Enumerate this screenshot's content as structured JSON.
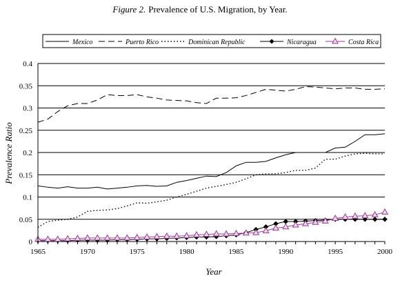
{
  "caption": {
    "figure_label": "Figure 2.",
    "figure_title": "Prevalence of U.S. Migration, by Year."
  },
  "chart_data": {
    "type": "line",
    "title": "Figure 2. Prevalence of U.S. Migration, by Year.",
    "xlabel": "Year",
    "ylabel": "Prevalence Ratio",
    "xlim": [
      1965,
      2000
    ],
    "ylim": [
      0,
      0.4
    ],
    "x_ticks": [
      1965,
      1970,
      1975,
      1980,
      1985,
      1990,
      1995,
      2000
    ],
    "y_ticks": [
      0,
      0.05,
      0.1,
      0.15,
      0.2,
      0.25,
      0.3,
      0.35,
      0.4
    ],
    "grid": "horizontal",
    "legend_position": "top",
    "x": [
      1965,
      1966,
      1967,
      1968,
      1969,
      1970,
      1971,
      1972,
      1973,
      1974,
      1975,
      1976,
      1977,
      1978,
      1979,
      1980,
      1981,
      1982,
      1983,
      1984,
      1985,
      1986,
      1987,
      1988,
      1989,
      1990,
      1991,
      1992,
      1993,
      1994,
      1995,
      1996,
      1997,
      1998,
      1999,
      2000
    ],
    "series": [
      {
        "name": "Mexico",
        "style": "solid",
        "marker": "none",
        "color": "#000000",
        "values": [
          0.125,
          0.122,
          0.12,
          0.123,
          0.12,
          0.12,
          0.122,
          0.118,
          0.12,
          0.122,
          0.125,
          0.126,
          0.124,
          0.125,
          0.133,
          0.137,
          0.142,
          0.147,
          0.146,
          0.155,
          0.17,
          0.178,
          0.178,
          0.18,
          0.188,
          0.195,
          0.2,
          0.2,
          0.2,
          0.2,
          0.21,
          0.212,
          0.225,
          0.24,
          0.24,
          0.242
        ]
      },
      {
        "name": "Puerto Rico",
        "style": "dashed",
        "marker": "none",
        "color": "#000000",
        "values": [
          0.268,
          0.275,
          0.292,
          0.305,
          0.31,
          0.31,
          0.318,
          0.33,
          0.328,
          0.328,
          0.33,
          0.325,
          0.322,
          0.318,
          0.317,
          0.316,
          0.312,
          0.31,
          0.322,
          0.322,
          0.323,
          0.328,
          0.335,
          0.342,
          0.34,
          0.338,
          0.342,
          0.348,
          0.347,
          0.345,
          0.343,
          0.345,
          0.345,
          0.342,
          0.342,
          0.343
        ]
      },
      {
        "name": "Dominican Republic",
        "style": "dotted",
        "marker": "none",
        "color": "#000000",
        "values": [
          0.032,
          0.045,
          0.048,
          0.05,
          0.055,
          0.068,
          0.07,
          0.071,
          0.074,
          0.08,
          0.087,
          0.086,
          0.089,
          0.093,
          0.1,
          0.106,
          0.113,
          0.12,
          0.124,
          0.128,
          0.133,
          0.141,
          0.15,
          0.152,
          0.152,
          0.155,
          0.16,
          0.16,
          0.165,
          0.185,
          0.185,
          0.192,
          0.197,
          0.198,
          0.197,
          0.197
        ]
      },
      {
        "name": "Nicaragua",
        "style": "solid",
        "marker": "diamond",
        "color": "#000000",
        "values": [
          0.002,
          0.002,
          0.002,
          0.002,
          0.003,
          0.003,
          0.003,
          0.003,
          0.004,
          0.004,
          0.005,
          0.006,
          0.006,
          0.007,
          0.008,
          0.009,
          0.01,
          0.01,
          0.011,
          0.013,
          0.015,
          0.02,
          0.027,
          0.033,
          0.04,
          0.045,
          0.045,
          0.046,
          0.047,
          0.048,
          0.05,
          0.05,
          0.05,
          0.05,
          0.05,
          0.05
        ]
      },
      {
        "name": "Costa Rica",
        "style": "solid",
        "marker": "triangle",
        "color": "#9b3b8f",
        "values": [
          0.005,
          0.005,
          0.005,
          0.006,
          0.007,
          0.008,
          0.008,
          0.008,
          0.008,
          0.008,
          0.009,
          0.01,
          0.011,
          0.012,
          0.012,
          0.013,
          0.015,
          0.016,
          0.017,
          0.017,
          0.018,
          0.019,
          0.02,
          0.024,
          0.03,
          0.033,
          0.037,
          0.04,
          0.043,
          0.046,
          0.052,
          0.055,
          0.057,
          0.058,
          0.06,
          0.066
        ]
      }
    ]
  }
}
